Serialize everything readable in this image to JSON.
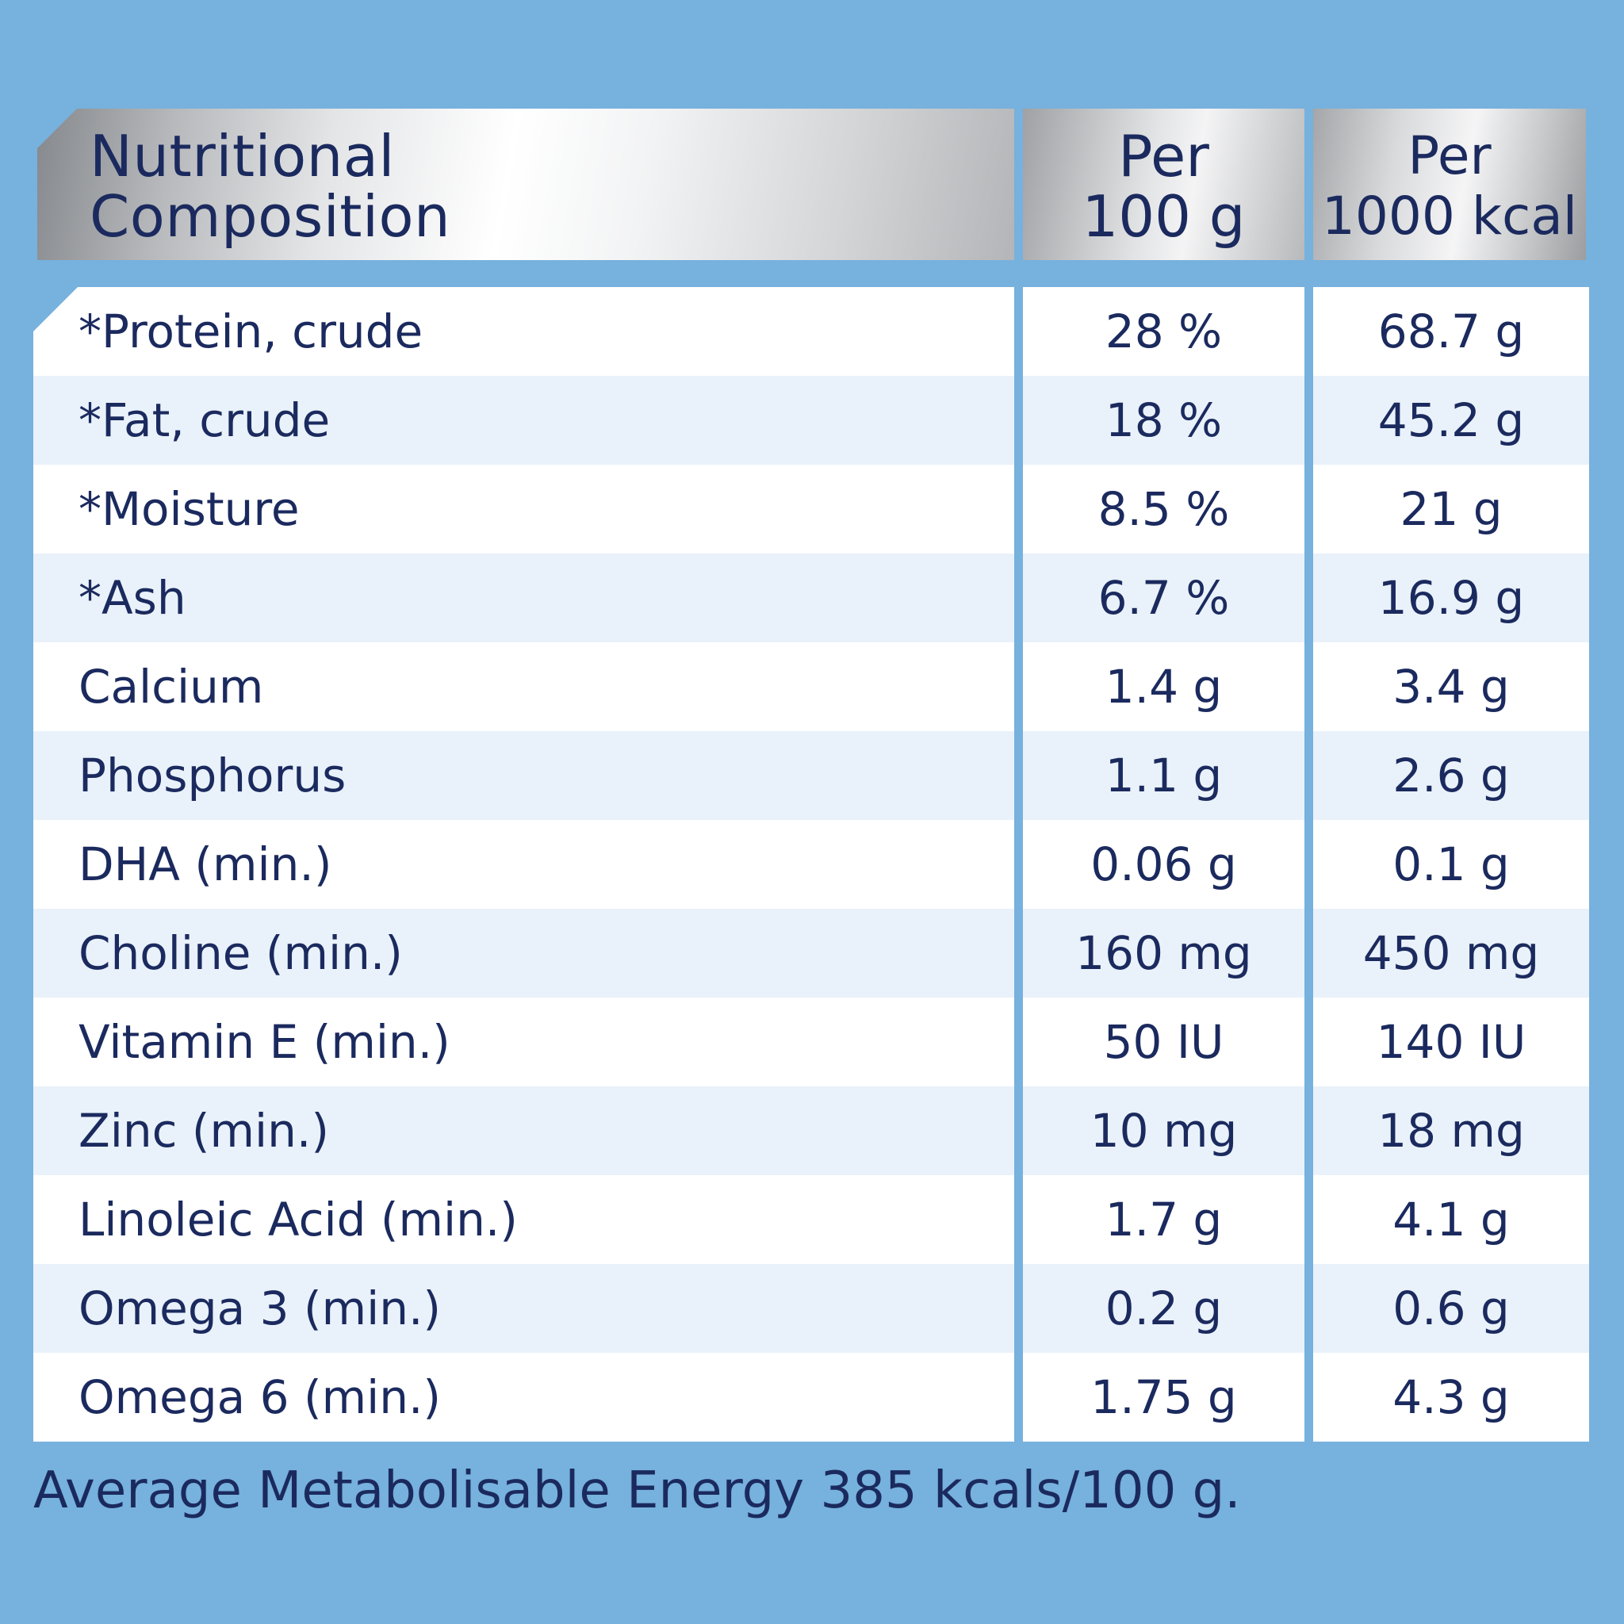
{
  "header": {
    "col1": "Nutritional\nComposition",
    "col2": "Per\n100 g",
    "col3": "Per\n1000 kcal"
  },
  "rows": [
    {
      "name": "*Protein, crude",
      "per100g": "28 %",
      "per1000kcal": "68.7 g"
    },
    {
      "name": "*Fat, crude",
      "per100g": "18 %",
      "per1000kcal": "45.2 g"
    },
    {
      "name": "*Moisture",
      "per100g": "8.5 %",
      "per1000kcal": "21 g"
    },
    {
      "name": "*Ash",
      "per100g": "6.7 %",
      "per1000kcal": "16.9 g"
    },
    {
      "name": "Calcium",
      "per100g": "1.4 g",
      "per1000kcal": "3.4 g"
    },
    {
      "name": "Phosphorus",
      "per100g": "1.1 g",
      "per1000kcal": "2.6 g"
    },
    {
      "name": "DHA (min.)",
      "per100g": "0.06 g",
      "per1000kcal": "0.1 g"
    },
    {
      "name": "Choline (min.)",
      "per100g": "160 mg",
      "per1000kcal": "450 mg"
    },
    {
      "name": "Vitamin E (min.)",
      "per100g": "50 IU",
      "per1000kcal": "140 IU"
    },
    {
      "name": "Zinc (min.)",
      "per100g": "10 mg",
      "per1000kcal": "18 mg"
    },
    {
      "name": "Linoleic Acid (min.)",
      "per100g": "1.7 g",
      "per1000kcal": "4.1 g"
    },
    {
      "name": "Omega 3 (min.)",
      "per100g": "0.2 g",
      "per1000kcal": "0.6 g"
    },
    {
      "name": "Omega 6 (min.)",
      "per100g": "1.75 g",
      "per1000kcal": "4.3 g"
    }
  ],
  "footer": "Average Metabolisable Energy 385 kcals/100 g.",
  "colors": {
    "background": "#77b1dd",
    "text": "#1b2a5e",
    "row_alt": "#e9f1fa",
    "row_white": "#ffffff"
  }
}
